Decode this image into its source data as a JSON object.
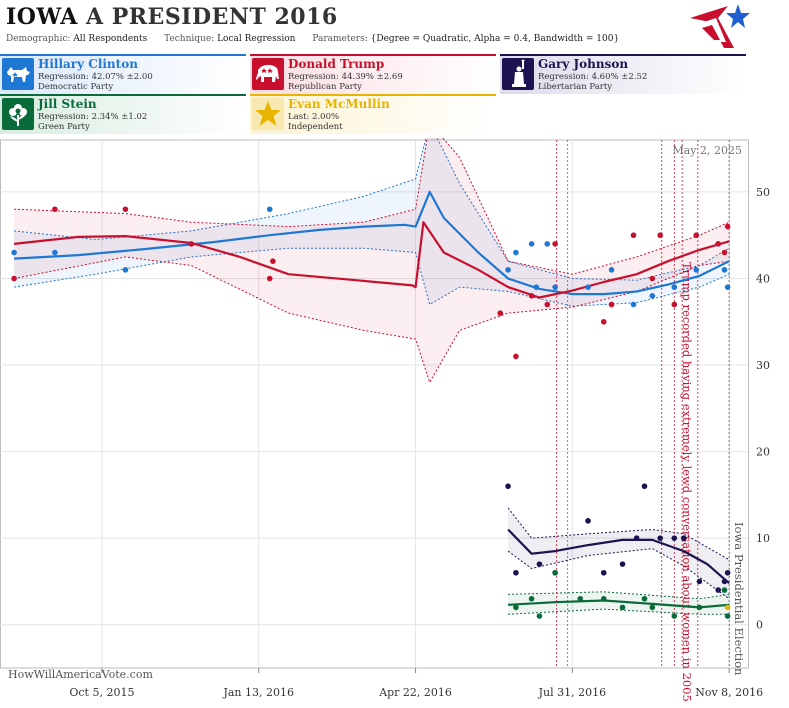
{
  "header": {
    "state": "IOWA",
    "race": "A PRESIDENT 2016",
    "demographic_label": "Demographic:",
    "demographic_value": "All Respondents",
    "technique_label": "Technique:",
    "technique_value": "Local Regression",
    "parameters_label": "Parameters:",
    "parameters_value": "{Degree = Quadratic, Alpha = 0.4, Bandwidth = 100}"
  },
  "candidates": [
    {
      "name": "Hillary Clinton",
      "stat": "Regression: 42.07% ±2.00",
      "party": "Democratic Party",
      "color": "#1f77d4",
      "icon": "donkey-icon"
    },
    {
      "name": "Donald Trump",
      "stat": "Regression: 44.39% ±2.69",
      "party": "Republican Party",
      "color": "#c8102e",
      "icon": "elephant-icon"
    },
    {
      "name": "Gary Johnson",
      "stat": "Regression: 4.60% ±2.52",
      "party": "Libertarian Party",
      "color": "#1b1450",
      "icon": "liberty-statue-icon"
    },
    {
      "name": "Jill Stein",
      "stat": "Regression: 2.34% ±1.02",
      "party": "Green Party",
      "color": "#0a6b3a",
      "icon": "flower-icon"
    },
    {
      "name": "Evan McMullin",
      "stat": "Last: 2.00%",
      "party": "Independent",
      "color": "#e8b400",
      "icon": "star-icon"
    }
  ],
  "watermark": "HowWillAmericaVote.com",
  "date_stamp": "May 2, 2025",
  "chart_data": {
    "type": "line",
    "x_ticks": [
      "Oct 5, 2015",
      "Jan 13, 2016",
      "Apr 22, 2016",
      "Jul 31, 2016",
      "Nov 8, 2016"
    ],
    "xlim": [
      "2015-08-01",
      "2016-11-20"
    ],
    "ylim": [
      -5,
      56
    ],
    "y_ticks": [
      0,
      10,
      20,
      30,
      40,
      50
    ],
    "grid": true,
    "annotations": [
      {
        "date": "2016-10-07",
        "text": "Trump recorded having extremely lewd conversation about women in 2005",
        "color": "#c8102e"
      },
      {
        "date": "2016-11-08",
        "text": "Iowa Presidential Election",
        "color": "#555555"
      }
    ],
    "event_lines": [
      {
        "date": "2016-07-21",
        "color": "#c8102e"
      },
      {
        "date": "2016-07-28",
        "color": "#1f77d4"
      },
      {
        "date": "2016-09-26",
        "color": "#c8102e"
      },
      {
        "date": "2016-10-04",
        "color": "#c8102e"
      },
      {
        "date": "2016-10-09",
        "color": "#c8102e"
      },
      {
        "date": "2016-10-19",
        "color": "#c8102e"
      },
      {
        "date": "2016-11-08",
        "color": "#555555"
      }
    ],
    "series": [
      {
        "name": "Hillary Clinton",
        "color": "#1f77d4",
        "trend": [
          [
            "2015-08-10",
            42.3
          ],
          [
            "2015-09-20",
            42.7
          ],
          [
            "2015-11-01",
            43.4
          ],
          [
            "2015-12-15",
            44.2
          ],
          [
            "2016-01-20",
            45.0
          ],
          [
            "2016-02-20",
            45.6
          ],
          [
            "2016-03-20",
            46.0
          ],
          [
            "2016-04-15",
            46.2
          ],
          [
            "2016-04-22",
            46.0
          ],
          [
            "2016-05-01",
            50.0
          ],
          [
            "2016-05-10",
            47.0
          ],
          [
            "2016-06-01",
            43.0
          ],
          [
            "2016-06-20",
            40.0
          ],
          [
            "2016-07-10",
            38.8
          ],
          [
            "2016-07-31",
            38.2
          ],
          [
            "2016-08-20",
            38.2
          ],
          [
            "2016-09-10",
            38.5
          ],
          [
            "2016-09-30",
            39.3
          ],
          [
            "2016-10-20",
            40.3
          ],
          [
            "2016-11-08",
            42.0
          ]
        ],
        "upper": [
          [
            "2015-08-10",
            45.5
          ],
          [
            "2015-10-01",
            44.5
          ],
          [
            "2015-12-01",
            45.5
          ],
          [
            "2016-02-01",
            47.5
          ],
          [
            "2016-03-20",
            49.5
          ],
          [
            "2016-04-22",
            51.5
          ],
          [
            "2016-05-01",
            58.0
          ],
          [
            "2016-05-20",
            51.0
          ],
          [
            "2016-06-20",
            42.0
          ],
          [
            "2016-07-31",
            40.0
          ],
          [
            "2016-09-10",
            39.8
          ],
          [
            "2016-10-20",
            41.5
          ],
          [
            "2016-11-08",
            43.5
          ]
        ],
        "lower": [
          [
            "2015-08-10",
            39.0
          ],
          [
            "2015-10-01",
            40.5
          ],
          [
            "2015-12-01",
            42.5
          ],
          [
            "2016-02-01",
            43.5
          ],
          [
            "2016-03-20",
            43.5
          ],
          [
            "2016-04-22",
            43.0
          ],
          [
            "2016-05-01",
            37.0
          ],
          [
            "2016-05-20",
            39.0
          ],
          [
            "2016-06-20",
            38.5
          ],
          [
            "2016-07-31",
            36.8
          ],
          [
            "2016-09-10",
            37.2
          ],
          [
            "2016-10-20",
            39.0
          ],
          [
            "2016-11-08",
            40.5
          ]
        ],
        "points": [
          [
            "2015-08-10",
            43
          ],
          [
            "2015-09-05",
            43
          ],
          [
            "2015-10-20",
            41
          ],
          [
            "2016-01-20",
            48
          ],
          [
            "2016-06-25",
            43
          ],
          [
            "2016-06-20",
            41
          ],
          [
            "2016-07-05",
            44
          ],
          [
            "2016-07-15",
            44
          ],
          [
            "2016-07-08",
            39
          ],
          [
            "2016-07-20",
            39
          ],
          [
            "2016-08-10",
            39
          ],
          [
            "2016-08-25",
            41
          ],
          [
            "2016-09-08",
            37
          ],
          [
            "2016-09-20",
            38
          ],
          [
            "2016-10-04",
            39
          ],
          [
            "2016-10-18",
            41
          ],
          [
            "2016-11-01",
            44
          ],
          [
            "2016-11-05",
            41
          ],
          [
            "2016-11-07",
            39
          ]
        ]
      },
      {
        "name": "Donald Trump",
        "color": "#c8102e",
        "trend": [
          [
            "2015-08-10",
            44.0
          ],
          [
            "2015-09-20",
            44.8
          ],
          [
            "2015-10-20",
            44.9
          ],
          [
            "2015-12-01",
            44.1
          ],
          [
            "2016-01-01",
            42.5
          ],
          [
            "2016-02-01",
            40.5
          ],
          [
            "2016-03-15",
            39.8
          ],
          [
            "2016-04-20",
            39.2
          ],
          [
            "2016-04-22",
            39.0
          ],
          [
            "2016-04-27",
            46.5
          ],
          [
            "2016-05-10",
            43.0
          ],
          [
            "2016-06-01",
            41.0
          ],
          [
            "2016-06-20",
            39.0
          ],
          [
            "2016-07-10",
            37.8
          ],
          [
            "2016-07-31",
            38.6
          ],
          [
            "2016-08-20",
            39.6
          ],
          [
            "2016-09-10",
            40.5
          ],
          [
            "2016-09-30",
            42.0
          ],
          [
            "2016-10-20",
            43.3
          ],
          [
            "2016-11-08",
            44.3
          ]
        ],
        "upper": [
          [
            "2015-08-10",
            48.0
          ],
          [
            "2015-10-20",
            47.5
          ],
          [
            "2015-12-01",
            46.5
          ],
          [
            "2016-02-01",
            46.0
          ],
          [
            "2016-03-20",
            46.5
          ],
          [
            "2016-04-22",
            48.0
          ],
          [
            "2016-05-01",
            58.0
          ],
          [
            "2016-05-20",
            54.0
          ],
          [
            "2016-06-20",
            42.0
          ],
          [
            "2016-07-31",
            40.5
          ],
          [
            "2016-09-10",
            42.5
          ],
          [
            "2016-10-20",
            45.0
          ],
          [
            "2016-11-08",
            46.5
          ]
        ],
        "lower": [
          [
            "2015-08-10",
            40.0
          ],
          [
            "2015-10-20",
            42.5
          ],
          [
            "2015-12-01",
            41.5
          ],
          [
            "2016-02-01",
            36.0
          ],
          [
            "2016-03-20",
            34.0
          ],
          [
            "2016-04-22",
            33.0
          ],
          [
            "2016-05-01",
            28.0
          ],
          [
            "2016-05-20",
            34.0
          ],
          [
            "2016-06-20",
            36.0
          ],
          [
            "2016-07-31",
            36.7
          ],
          [
            "2016-09-10",
            38.5
          ],
          [
            "2016-10-20",
            41.5
          ],
          [
            "2016-11-08",
            42.0
          ]
        ],
        "points": [
          [
            "2015-08-10",
            40
          ],
          [
            "2015-09-05",
            48
          ],
          [
            "2015-10-20",
            48
          ],
          [
            "2015-12-01",
            44
          ],
          [
            "2016-01-20",
            40
          ],
          [
            "2016-01-22",
            42
          ],
          [
            "2016-06-15",
            36
          ],
          [
            "2016-06-25",
            31
          ],
          [
            "2016-07-05",
            38
          ],
          [
            "2016-07-15",
            37
          ],
          [
            "2016-07-20",
            44
          ],
          [
            "2016-08-20",
            35
          ],
          [
            "2016-08-25",
            37
          ],
          [
            "2016-09-08",
            45
          ],
          [
            "2016-09-20",
            40
          ],
          [
            "2016-09-25",
            45
          ],
          [
            "2016-10-04",
            37
          ],
          [
            "2016-10-18",
            45
          ],
          [
            "2016-11-01",
            44
          ],
          [
            "2016-11-05",
            43
          ],
          [
            "2016-11-07",
            46
          ]
        ]
      },
      {
        "name": "Gary Johnson",
        "color": "#1b1450",
        "trend": [
          [
            "2016-06-20",
            11.0
          ],
          [
            "2016-07-05",
            8.2
          ],
          [
            "2016-07-20",
            8.5
          ],
          [
            "2016-08-10",
            9.2
          ],
          [
            "2016-09-01",
            9.8
          ],
          [
            "2016-09-20",
            9.8
          ],
          [
            "2016-10-10",
            8.5
          ],
          [
            "2016-10-25",
            7.0
          ],
          [
            "2016-11-08",
            4.8
          ]
        ],
        "upper": [
          [
            "2016-06-20",
            13.5
          ],
          [
            "2016-07-05",
            10.0
          ],
          [
            "2016-08-10",
            10.5
          ],
          [
            "2016-09-20",
            11.0
          ],
          [
            "2016-10-10",
            10.5
          ],
          [
            "2016-11-08",
            7.5
          ]
        ],
        "lower": [
          [
            "2016-06-20",
            8.5
          ],
          [
            "2016-07-05",
            6.5
          ],
          [
            "2016-08-10",
            8.0
          ],
          [
            "2016-09-20",
            8.8
          ],
          [
            "2016-10-10",
            6.8
          ],
          [
            "2016-11-08",
            3.0
          ]
        ],
        "points": [
          [
            "2016-06-20",
            16
          ],
          [
            "2016-06-25",
            6
          ],
          [
            "2016-07-10",
            7
          ],
          [
            "2016-07-20",
            6
          ],
          [
            "2016-08-10",
            12
          ],
          [
            "2016-08-20",
            6
          ],
          [
            "2016-09-01",
            7
          ],
          [
            "2016-09-10",
            10
          ],
          [
            "2016-09-15",
            16
          ],
          [
            "2016-09-25",
            10
          ],
          [
            "2016-10-04",
            10
          ],
          [
            "2016-10-10",
            10
          ],
          [
            "2016-10-20",
            5
          ],
          [
            "2016-11-01",
            4
          ],
          [
            "2016-11-05",
            5
          ],
          [
            "2016-11-07",
            6
          ]
        ]
      },
      {
        "name": "Jill Stein",
        "color": "#0a6b3a",
        "trend": [
          [
            "2016-06-20",
            2.3
          ],
          [
            "2016-07-20",
            2.6
          ],
          [
            "2016-08-20",
            2.8
          ],
          [
            "2016-09-20",
            2.4
          ],
          [
            "2016-10-20",
            2.0
          ],
          [
            "2016-11-08",
            2.3
          ]
        ],
        "upper": [
          [
            "2016-06-20",
            3.5
          ],
          [
            "2016-08-20",
            3.8
          ],
          [
            "2016-10-20",
            3.0
          ],
          [
            "2016-11-08",
            3.5
          ]
        ],
        "lower": [
          [
            "2016-06-20",
            1.2
          ],
          [
            "2016-08-20",
            1.8
          ],
          [
            "2016-10-20",
            1.2
          ],
          [
            "2016-11-08",
            1.2
          ]
        ],
        "points": [
          [
            "2016-06-25",
            2
          ],
          [
            "2016-07-05",
            3
          ],
          [
            "2016-07-10",
            1
          ],
          [
            "2016-07-20",
            6
          ],
          [
            "2016-08-05",
            3
          ],
          [
            "2016-08-20",
            3
          ],
          [
            "2016-09-01",
            2
          ],
          [
            "2016-09-15",
            3
          ],
          [
            "2016-09-20",
            2
          ],
          [
            "2016-10-04",
            1
          ],
          [
            "2016-10-20",
            2
          ],
          [
            "2016-11-05",
            4
          ],
          [
            "2016-11-07",
            1
          ]
        ]
      },
      {
        "name": "Evan McMullin",
        "color": "#e8b400",
        "trend": [],
        "upper": [],
        "lower": [],
        "points": [
          [
            "2016-11-07",
            2
          ]
        ]
      }
    ]
  }
}
